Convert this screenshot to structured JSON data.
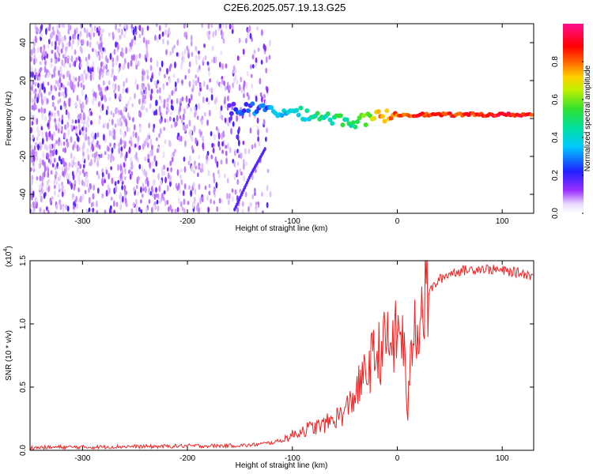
{
  "title": "C2E6.2025.057.19.13.G25",
  "chart_data": [
    {
      "type": "heatmap",
      "xlabel": "Height of straight line (km)",
      "ylabel": "Frequency (Hz)",
      "xlim": [
        -350,
        130
      ],
      "ylim": [
        -50,
        50
      ],
      "xticks": [
        -300,
        -200,
        -100,
        0,
        100
      ],
      "yticks": [
        -40,
        -20,
        0,
        20,
        40
      ],
      "colorbar": {
        "label": "Normalized spectral amplitude",
        "range": [
          0,
          1
        ],
        "ticks": [
          "0.0",
          "0.2",
          "0.4",
          "0.6",
          "0.8"
        ],
        "colormap": "rainbow (white-violet-blue-cyan-green-yellow-red-magenta)"
      },
      "ridge": [
        {
          "x": -160,
          "y": 5,
          "amplitude": 0.18
        },
        {
          "x": -140,
          "y": 5,
          "amplitude": 0.25
        },
        {
          "x": -120,
          "y": 4,
          "amplitude": 0.3
        },
        {
          "x": -100,
          "y": 3,
          "amplitude": 0.38
        },
        {
          "x": -80,
          "y": 2,
          "amplitude": 0.45
        },
        {
          "x": -60,
          "y": 0,
          "amplitude": 0.5
        },
        {
          "x": -40,
          "y": -2,
          "amplitude": 0.45
        },
        {
          "x": -20,
          "y": 1,
          "amplitude": 0.7
        },
        {
          "x": 0,
          "y": 2,
          "amplitude": 0.8
        },
        {
          "x": 20,
          "y": 2,
          "amplitude": 0.85
        },
        {
          "x": 40,
          "y": 2,
          "amplitude": 0.85
        },
        {
          "x": 60,
          "y": 2,
          "amplitude": 0.85
        },
        {
          "x": 80,
          "y": 2,
          "amplitude": 0.85
        },
        {
          "x": 100,
          "y": 2,
          "amplitude": 0.9
        },
        {
          "x": 130,
          "y": 2,
          "amplitude": 0.85
        }
      ],
      "secondary_line": [
        {
          "x": -155,
          "y": -48
        },
        {
          "x": -140,
          "y": -30
        },
        {
          "x": -125,
          "y": -15
        }
      ]
    },
    {
      "type": "line",
      "xlabel": "Height of straight line (km)",
      "ylabel": "SNR (10 * v/v)",
      "y_multiplier_label": "(x10",
      "y_multiplier_exp": "4",
      "xlim": [
        -350,
        130
      ],
      "ylim": [
        0,
        1.5
      ],
      "xticks": [
        -300,
        -200,
        -100,
        0,
        100
      ],
      "yticks": [
        "0.0",
        "0.5",
        "1.0",
        "1.5"
      ],
      "series": [
        {
          "color": "#ee2222",
          "x": [
            -350,
            -320,
            -290,
            -260,
            -230,
            -200,
            -170,
            -140,
            -120,
            -110,
            -100,
            -90,
            -80,
            -70,
            -60,
            -50,
            -40,
            -30,
            -25,
            -20,
            -15,
            -10,
            -5,
            0,
            5,
            10,
            15,
            20,
            25,
            30,
            40,
            50,
            60,
            70,
            80,
            90,
            100,
            110,
            120,
            130
          ],
          "y": [
            0.02,
            0.025,
            0.025,
            0.03,
            0.03,
            0.035,
            0.035,
            0.04,
            0.06,
            0.08,
            0.12,
            0.16,
            0.18,
            0.2,
            0.25,
            0.3,
            0.45,
            0.6,
            0.7,
            0.75,
            0.8,
            0.85,
            0.85,
            0.9,
            0.95,
            0.3,
            1.0,
            1.05,
            1.15,
            1.25,
            1.35,
            1.4,
            1.42,
            1.43,
            1.44,
            1.43,
            1.42,
            1.41,
            1.4,
            1.38
          ]
        }
      ]
    }
  ],
  "colors": {
    "line": "#ee2222"
  }
}
